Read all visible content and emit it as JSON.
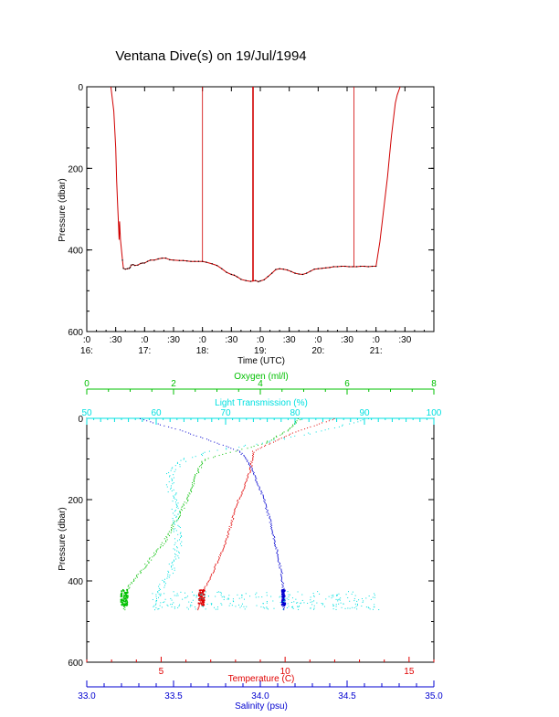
{
  "title": "Ventana Dive(s) on 19/Jul/1994",
  "colors": {
    "axis": "#000000",
    "track": "#d00000",
    "temperature": "#e00000",
    "salinity": "#0000d0",
    "oxygen": "#00c000",
    "light": "#00e0e0"
  },
  "chart_data": [
    {
      "type": "line",
      "title": "Ventana Dive(s) on 19/Jul/1994",
      "xlabel": "Time (UTC)",
      "ylabel": "Pressure (dbar)",
      "x_unit": "minutes after 16:00 UTC (axis shows hh:mm)",
      "xlim": [
        0,
        360
      ],
      "ylim": [
        600,
        0
      ],
      "x_tick_labels": [
        {
          "x": 0,
          "top": ":0",
          "bottom": "16:"
        },
        {
          "x": 30,
          "top": ":30",
          "bottom": ""
        },
        {
          "x": 60,
          "top": ":0",
          "bottom": "17:"
        },
        {
          "x": 90,
          "top": ":30",
          "bottom": ""
        },
        {
          "x": 120,
          "top": ":0",
          "bottom": "18:"
        },
        {
          "x": 150,
          "top": ":30",
          "bottom": ""
        },
        {
          "x": 180,
          "top": ":0",
          "bottom": "19:"
        },
        {
          "x": 210,
          "top": ":30",
          "bottom": ""
        },
        {
          "x": 240,
          "top": ":0",
          "bottom": "20:"
        },
        {
          "x": 270,
          "top": ":30",
          "bottom": ""
        },
        {
          "x": 300,
          "top": ":0",
          "bottom": "21:"
        },
        {
          "x": 330,
          "top": ":30",
          "bottom": ""
        }
      ],
      "y_ticks": [
        0,
        200,
        400,
        600
      ],
      "series": [
        {
          "color_key": "track",
          "x": [
            25,
            28,
            30,
            31,
            32,
            33,
            33.5,
            34,
            35,
            36,
            37,
            38,
            40,
            42,
            44,
            45,
            46,
            48,
            50,
            53,
            56,
            58,
            60,
            63,
            66,
            70,
            74,
            78,
            82,
            86,
            90,
            96,
            100,
            104,
            108,
            112,
            116,
            120,
            124,
            130,
            135,
            140,
            145,
            150,
            153,
            156,
            160,
            165,
            170,
            175,
            178,
            180,
            184,
            188,
            192,
            196,
            200,
            204,
            208,
            212,
            216,
            220,
            224,
            228,
            232,
            236,
            240,
            244,
            248,
            252,
            256,
            260,
            264,
            268,
            272,
            276,
            280,
            284,
            288,
            292,
            296,
            300,
            302,
            304,
            306,
            308,
            310,
            312,
            314,
            316,
            318,
            320,
            322,
            325
          ],
          "y": [
            0,
            60,
            150,
            230,
            290,
            340,
            375,
            330,
            375,
            400,
            425,
            445,
            447,
            446,
            445,
            443,
            437,
            436,
            438,
            437,
            433,
            432,
            432,
            428,
            425,
            425,
            422,
            420,
            420,
            424,
            425,
            426,
            426,
            427,
            428,
            428,
            428,
            428,
            430,
            434,
            438,
            446,
            455,
            460,
            462,
            466,
            472,
            475,
            477,
            475,
            478,
            476,
            473,
            465,
            457,
            448,
            446,
            447,
            449,
            453,
            457,
            459,
            460,
            457,
            452,
            447,
            446,
            445,
            444,
            443,
            441,
            441,
            440,
            440,
            441,
            441,
            441,
            440,
            440,
            441,
            440,
            440,
            410,
            380,
            340,
            300,
            260,
            220,
            170,
            120,
            80,
            40,
            20,
            0
          ]
        },
        {
          "color_key": "track",
          "x": [
            120,
            120
          ],
          "y": [
            0,
            428
          ]
        },
        {
          "color_key": "track",
          "x": [
            172,
            172
          ],
          "y": [
            0,
            476
          ]
        },
        {
          "color_key": "track",
          "x": [
            173,
            173
          ],
          "y": [
            0,
            476
          ]
        },
        {
          "color_key": "track",
          "x": [
            277,
            277
          ],
          "y": [
            0,
            440
          ]
        }
      ]
    },
    {
      "type": "scatter",
      "ylabel": "Pressure (dbar)",
      "ylim": [
        600,
        0
      ],
      "y_ticks": [
        0,
        200,
        400,
        600
      ],
      "axes": {
        "temperature": {
          "label": "Temperature (C)",
          "range": [
            2,
            16
          ],
          "tick_labels": [
            5,
            10,
            15
          ],
          "position": "bottom",
          "color_key": "temperature"
        },
        "salinity": {
          "label": "Salinity (psu)",
          "range": [
            33.0,
            35.0
          ],
          "tick_labels": [
            "33.0",
            "33.5",
            "34.0",
            "34.5",
            "35.0"
          ],
          "position": "bottom-outer",
          "color_key": "salinity"
        },
        "oxygen": {
          "label": "Oxygen (ml/l)",
          "range": [
            0,
            8
          ],
          "tick_labels": [
            0,
            2,
            4,
            6,
            8
          ],
          "position": "top-outer",
          "color_key": "oxygen"
        },
        "light": {
          "label": "Light Transmission (%)",
          "range": [
            50,
            100
          ],
          "tick_labels": [
            50,
            60,
            70,
            80,
            90,
            100
          ],
          "position": "top",
          "color_key": "light"
        }
      },
      "series": [
        {
          "name": "Oxygen (ml/l)",
          "axis": "oxygen",
          "color_key": "oxygen",
          "profile": [
            [
              0,
              4.9
            ],
            [
              30,
              4.6
            ],
            [
              60,
              4.1
            ],
            [
              80,
              3.4
            ],
            [
              100,
              2.7
            ],
            [
              140,
              2.5
            ],
            [
              200,
              2.3
            ],
            [
              260,
              2.0
            ],
            [
              300,
              1.8
            ],
            [
              340,
              1.5
            ],
            [
              380,
              1.2
            ],
            [
              420,
              0.9
            ],
            [
              440,
              0.85
            ],
            [
              470,
              0.85
            ]
          ],
          "cluster": [
            0.85,
            440,
            0.08
          ]
        },
        {
          "name": "Temperature (C)",
          "axis": "temperature",
          "color_key": "temperature",
          "profile": [
            [
              0,
              12.0
            ],
            [
              30,
              10.5
            ],
            [
              60,
              9.4
            ],
            [
              80,
              8.7
            ],
            [
              120,
              8.6
            ],
            [
              160,
              8.4
            ],
            [
              200,
              8.1
            ],
            [
              240,
              7.9
            ],
            [
              300,
              7.6
            ],
            [
              360,
              7.2
            ],
            [
              400,
              6.9
            ],
            [
              430,
              6.6
            ],
            [
              470,
              6.5
            ]
          ],
          "cluster": [
            6.6,
            440,
            0.12
          ]
        },
        {
          "name": "Salinity (psu)",
          "axis": "salinity",
          "color_key": "salinity",
          "profile": [
            [
              0,
              33.3
            ],
            [
              30,
              33.55
            ],
            [
              60,
              33.75
            ],
            [
              80,
              33.88
            ],
            [
              120,
              33.95
            ],
            [
              160,
              33.98
            ],
            [
              200,
              34.02
            ],
            [
              260,
              34.06
            ],
            [
              320,
              34.09
            ],
            [
              380,
              34.12
            ],
            [
              420,
              34.13
            ],
            [
              470,
              34.13
            ]
          ],
          "cluster": [
            34.13,
            440,
            0.01
          ]
        },
        {
          "name": "Light Transmission (%)",
          "axis": "light",
          "color_key": "light",
          "profile": [
            [
              0,
              90.0
            ],
            [
              20,
              86.0
            ],
            [
              40,
              81.0
            ],
            [
              60,
              75.0
            ],
            [
              80,
              68.0
            ],
            [
              100,
              64.0
            ],
            [
              130,
              62.0
            ],
            [
              160,
              62.0
            ],
            [
              200,
              62.5
            ],
            [
              260,
              63.0
            ],
            [
              320,
              63.0
            ],
            [
              380,
              62.0
            ],
            [
              430,
              60.0
            ],
            [
              470,
              60.0
            ]
          ],
          "band": [
            [
              60,
              92
            ],
            [
              425,
              470
            ]
          ]
        }
      ]
    }
  ]
}
